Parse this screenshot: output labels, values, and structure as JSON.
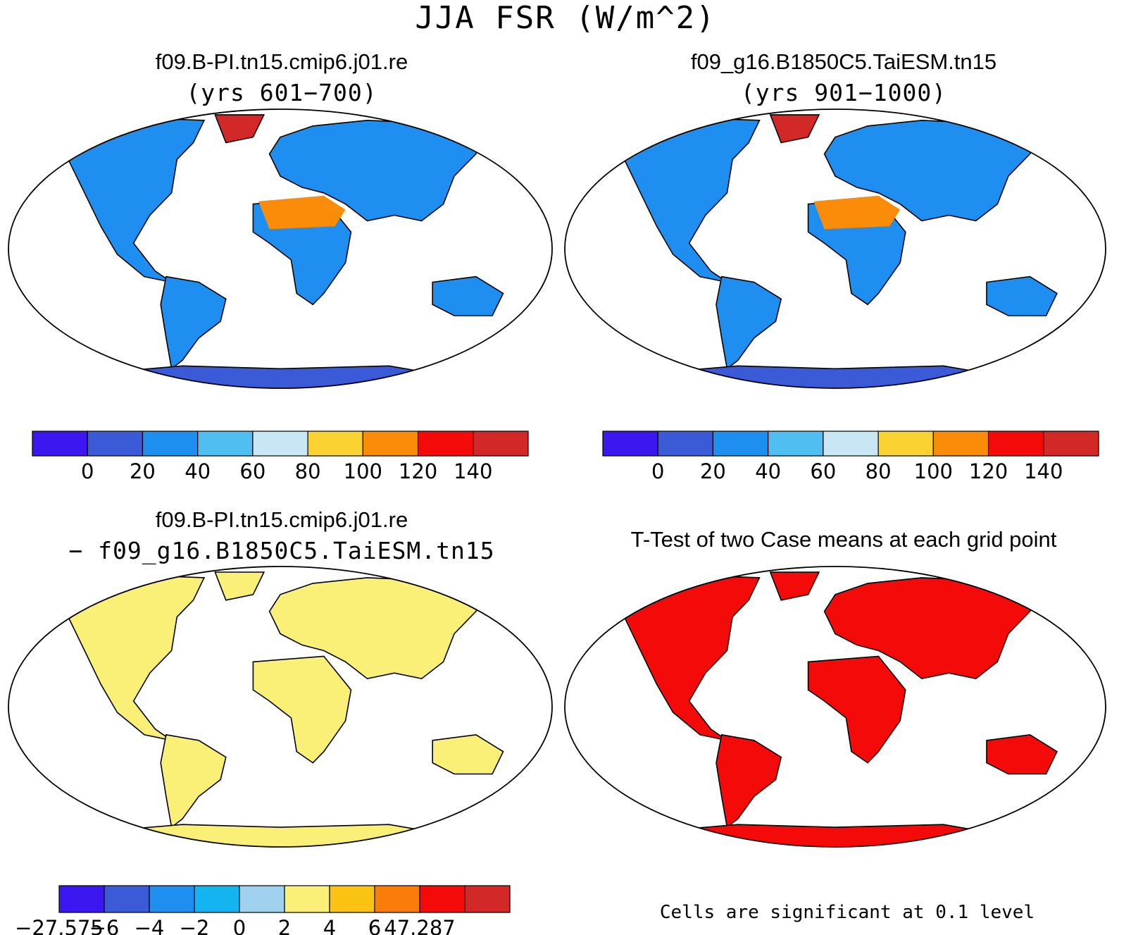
{
  "main_title": "JJA FSR (W/m^2)",
  "panels": {
    "top_left": {
      "title": "f09.B-PI.tn15.cmip6.j01.re",
      "subtitle": "(yrs 601−700)"
    },
    "top_right": {
      "title": "f09_g16.B1850C5.TaiESM.tn15",
      "subtitle": "(yrs 901−1000)"
    },
    "bottom_left": {
      "title": "f09.B-PI.tn15.cmip6.j01.re",
      "subtitle": "− f09_g16.B1850C5.TaiESM.tn15"
    },
    "bottom_right": {
      "title": "T-Test of two Case means at each grid point",
      "note": "Cells are significant at 0.1 level"
    }
  },
  "colorbars": {
    "abs": {
      "colors": [
        "#3c17f0",
        "#3a5ad8",
        "#1e8ef0",
        "#50bef0",
        "#c8e6f4",
        "#fad232",
        "#fa8c0a",
        "#f50a0a",
        "#d22828"
      ],
      "labels": [
        "0",
        "20",
        "40",
        "60",
        "80",
        "100",
        "120",
        "140"
      ]
    },
    "diff": {
      "colors": [
        "#3c17f0",
        "#3a5ad8",
        "#1e8ef0",
        "#14b4f0",
        "#a0d2f0",
        "#faf078",
        "#fac314",
        "#fa7d0a",
        "#f50a0a",
        "#d22828"
      ],
      "labels": [
        "−27.575",
        "−6",
        "−4",
        "−2",
        "0",
        "2",
        "4",
        "6",
        "47.287"
      ]
    }
  },
  "map_colors": {
    "land_abs": "#1e8ef0",
    "land_diff": "#faf078",
    "significant": "#f50a0a",
    "antarctica_abs": "#3a5ad8",
    "greenland_abs": "#d22828"
  }
}
